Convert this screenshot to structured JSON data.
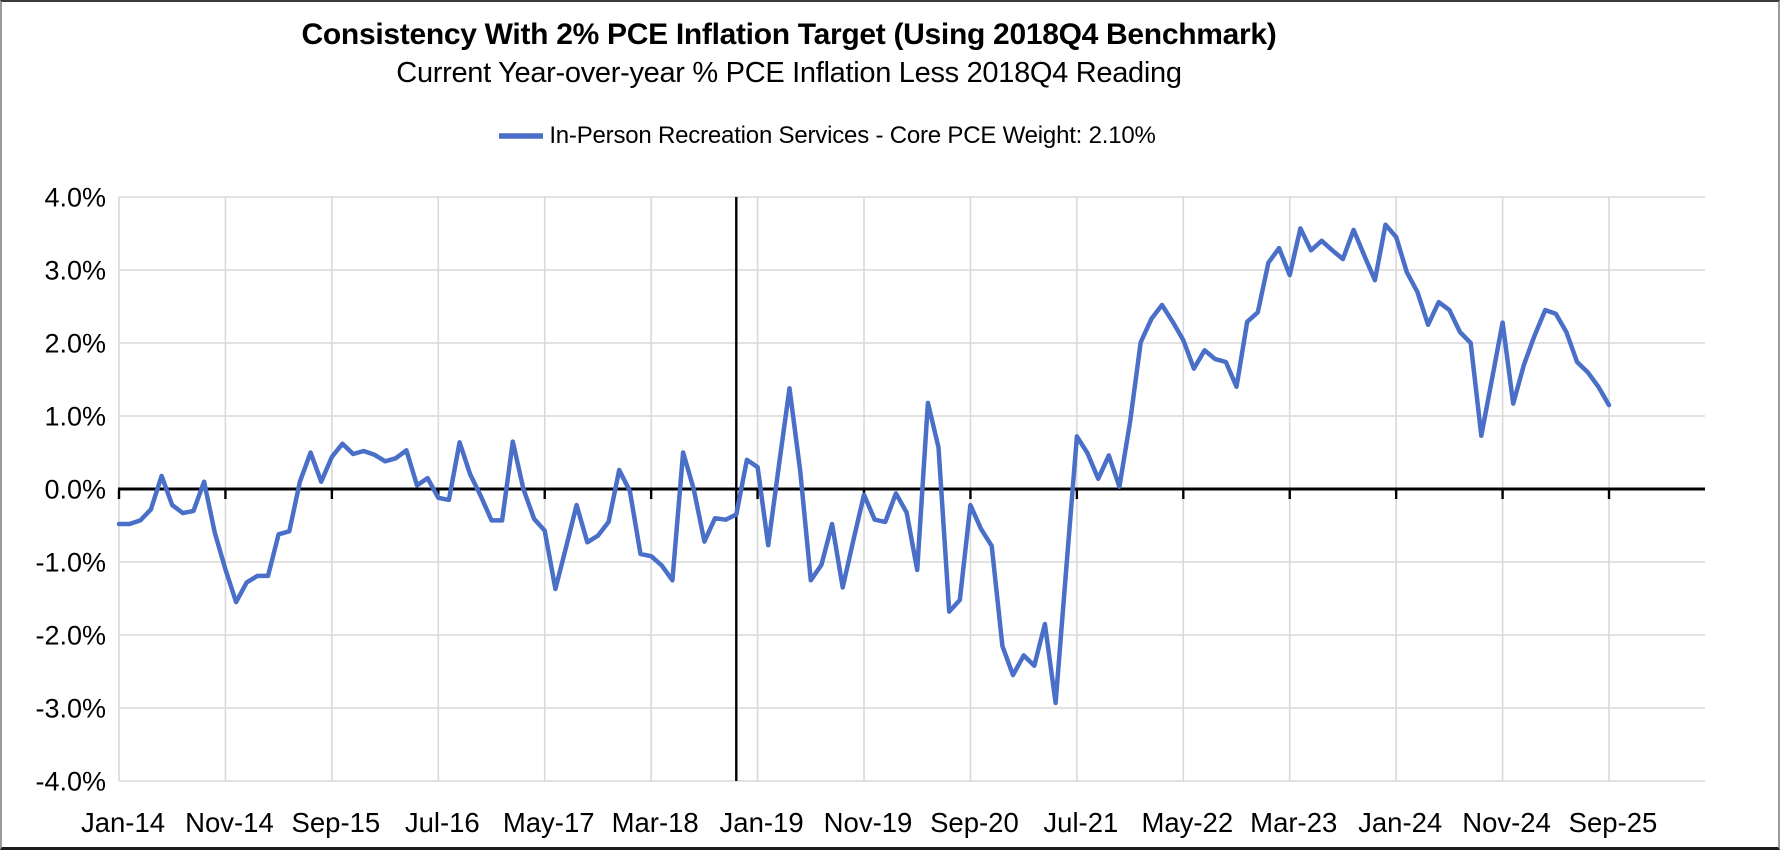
{
  "chart_data": {
    "type": "line",
    "title": "Consistency With 2% PCE Inflation Target (Using 2018Q4 Benchmark)",
    "subtitle": "Current Year-over-year % PCE Inflation Less 2018Q4 Reading",
    "legend_label": "In-Person Recreation Services - Core PCE Weight: 2.10%",
    "ylim": [
      -4,
      4
    ],
    "y_tick_labels": [
      "4.0%",
      "3.0%",
      "2.0%",
      "1.0%",
      "0.0%",
      "-1.0%",
      "-2.0%",
      "-3.0%",
      "-4.0%"
    ],
    "x_tick_labels": [
      "Jan-14",
      "Nov-14",
      "Sep-15",
      "Jul-16",
      "May-17",
      "Mar-18",
      "Jan-19",
      "Nov-19",
      "Sep-20",
      "Jul-21",
      "May-22",
      "Mar-23",
      "Jan-24",
      "Nov-24",
      "Sep-25"
    ],
    "x_tick_every": 10,
    "benchmark_month": "Nov-18",
    "grid": true,
    "legend_position": "top",
    "x": [
      "Jan-14",
      "Feb-14",
      "Mar-14",
      "Apr-14",
      "May-14",
      "Jun-14",
      "Jul-14",
      "Aug-14",
      "Sep-14",
      "Oct-14",
      "Nov-14",
      "Dec-14",
      "Jan-15",
      "Feb-15",
      "Mar-15",
      "Apr-15",
      "May-15",
      "Jun-15",
      "Jul-15",
      "Aug-15",
      "Sep-15",
      "Oct-15",
      "Nov-15",
      "Dec-15",
      "Jan-16",
      "Feb-16",
      "Mar-16",
      "Apr-16",
      "May-16",
      "Jun-16",
      "Jul-16",
      "Aug-16",
      "Sep-16",
      "Oct-16",
      "Nov-16",
      "Dec-16",
      "Jan-17",
      "Feb-17",
      "Mar-17",
      "Apr-17",
      "May-17",
      "Jun-17",
      "Jul-17",
      "Aug-17",
      "Sep-17",
      "Oct-17",
      "Nov-17",
      "Dec-17",
      "Jan-18",
      "Feb-18",
      "Mar-18",
      "Apr-18",
      "May-18",
      "Jun-18",
      "Jul-18",
      "Aug-18",
      "Sep-18",
      "Oct-18",
      "Nov-18",
      "Dec-18",
      "Jan-19",
      "Feb-19",
      "Mar-19",
      "Apr-19",
      "May-19",
      "Jun-19",
      "Jul-19",
      "Aug-19",
      "Sep-19",
      "Oct-19",
      "Nov-19",
      "Dec-19",
      "Jan-20",
      "Feb-20",
      "Mar-20",
      "Apr-20",
      "May-20",
      "Jun-20",
      "Jul-20",
      "Aug-20",
      "Sep-20",
      "Oct-20",
      "Nov-20",
      "Dec-20",
      "Jan-21",
      "Feb-21",
      "Mar-21",
      "Apr-21",
      "May-21",
      "Jun-21",
      "Jul-21",
      "Aug-21",
      "Sep-21",
      "Oct-21",
      "Nov-21",
      "Dec-21",
      "Jan-22",
      "Feb-22",
      "Mar-22",
      "Apr-22",
      "May-22",
      "Jun-22",
      "Jul-22",
      "Aug-22",
      "Sep-22",
      "Oct-22",
      "Nov-22",
      "Dec-22",
      "Jan-23",
      "Feb-23",
      "Mar-23",
      "Apr-23",
      "May-23",
      "Jun-23",
      "Jul-23",
      "Aug-23",
      "Sep-23",
      "Oct-23",
      "Nov-23",
      "Dec-23",
      "Jan-24",
      "Feb-24",
      "Mar-24",
      "Apr-24",
      "May-24",
      "Jun-24",
      "Jul-24",
      "Aug-24",
      "Sep-24",
      "Oct-24",
      "Nov-24",
      "Dec-24",
      "Jan-25",
      "Feb-25",
      "Mar-25",
      "Apr-25",
      "May-25",
      "Jun-25",
      "Jul-25",
      "Aug-25",
      "Sep-25"
    ],
    "values": [
      -0.48,
      -0.48,
      -0.43,
      -0.28,
      0.18,
      -0.22,
      -0.33,
      -0.3,
      0.1,
      -0.6,
      -1.1,
      -1.55,
      -1.28,
      -1.19,
      -1.19,
      -0.62,
      -0.58,
      0.1,
      0.5,
      0.1,
      0.44,
      0.62,
      0.48,
      0.52,
      0.47,
      0.38,
      0.42,
      0.53,
      0.05,
      0.15,
      -0.12,
      -0.15,
      0.64,
      0.2,
      -0.1,
      -0.43,
      -0.43,
      0.65,
      0.0,
      -0.41,
      -0.57,
      -1.37,
      -0.8,
      -0.22,
      -0.73,
      -0.64,
      -0.45,
      0.26,
      -0.03,
      -0.89,
      -0.92,
      -1.05,
      -1.25,
      0.5,
      0.0,
      -0.72,
      -0.4,
      -0.42,
      -0.35,
      0.4,
      0.3,
      -0.77,
      0.32,
      1.38,
      0.25,
      -1.25,
      -1.04,
      -0.48,
      -1.35,
      -0.7,
      -0.08,
      -0.42,
      -0.45,
      -0.06,
      -0.32,
      -1.11,
      1.18,
      0.57,
      -1.68,
      -1.52,
      -0.22,
      -0.55,
      -0.78,
      -2.15,
      -2.55,
      -2.28,
      -2.42,
      -1.85,
      -2.93,
      -1.1,
      0.72,
      0.49,
      0.14,
      0.46,
      0.03,
      0.92,
      2.01,
      2.33,
      2.52,
      2.29,
      2.04,
      1.65,
      1.9,
      1.78,
      1.74,
      1.4,
      2.29,
      2.42,
      3.1,
      3.3,
      2.93,
      3.57,
      3.27,
      3.4,
      3.27,
      3.15,
      3.55,
      3.2,
      2.86,
      3.62,
      3.45,
      2.97,
      2.7,
      2.25,
      2.56,
      2.45,
      2.15,
      2.0,
      0.73,
      1.5,
      2.28,
      1.17,
      1.7,
      2.1,
      2.45,
      2.4,
      2.15,
      1.74,
      1.6,
      1.4,
      1.15
    ]
  },
  "colors": {
    "line": "#4a6fc8",
    "gridline": "#d9d9d9",
    "axis": "#000000",
    "benchmark_line": "#000000",
    "text": "#000000",
    "background": "#ffffff"
  }
}
